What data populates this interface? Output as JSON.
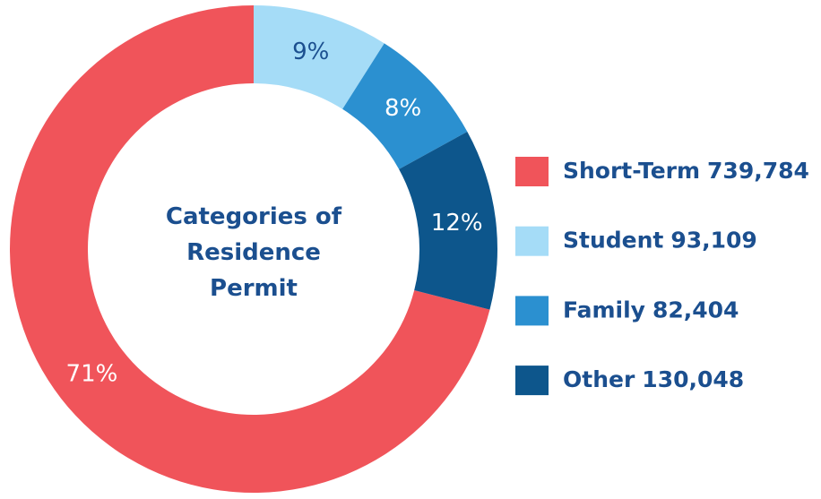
{
  "chart_data": {
    "type": "donut",
    "title": "Categories of Residence Permit",
    "categories": [
      "Short-Term",
      "Student",
      "Family",
      "Other"
    ],
    "values": [
      71,
      9,
      8,
      12
    ],
    "value_labels": [
      "71%",
      "9%",
      "8%",
      "12%"
    ],
    "counts": [
      739784,
      93109,
      82404,
      130048
    ],
    "count_labels": [
      "739,784",
      "93,109",
      "82,404",
      "130,048"
    ],
    "colors": [
      "#f0545a",
      "#a5dcf7",
      "#2b90d0",
      "#0d568c"
    ],
    "legend": "right"
  }
}
